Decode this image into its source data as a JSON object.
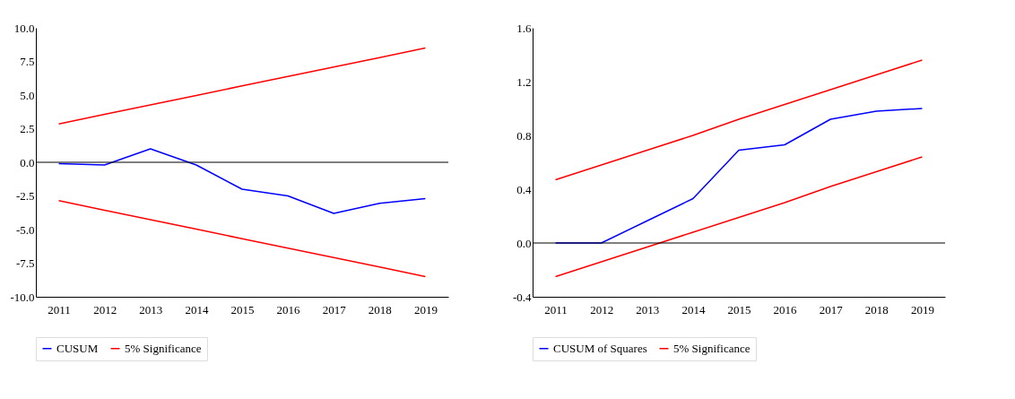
{
  "chart_data": [
    {
      "type": "line",
      "categories": [
        "2011",
        "2012",
        "2013",
        "2014",
        "2015",
        "2016",
        "2017",
        "2018",
        "2019"
      ],
      "series": [
        {
          "name": "CUSUM",
          "color": "#0000ff",
          "values": [
            -0.1,
            -0.2,
            1.0,
            -0.2,
            -2.0,
            -2.5,
            -3.8,
            -3.05,
            -2.7
          ]
        },
        {
          "name": "5% Significance",
          "color": "#ff0000",
          "values": [
            2.85,
            3.56,
            4.26,
            4.97,
            5.68,
            6.38,
            7.09,
            7.79,
            8.5
          ]
        },
        {
          "color": "#ff0000",
          "values": [
            -2.85,
            -3.56,
            -4.26,
            -4.97,
            -5.68,
            -6.38,
            -7.09,
            -7.79,
            -8.5
          ]
        }
      ],
      "ylim": [
        -10,
        10
      ],
      "yticks": [
        {
          "value": -10,
          "label": "-10.0"
        },
        {
          "value": -7.5,
          "label": "-7.5"
        },
        {
          "value": -5,
          "label": "-5.0"
        },
        {
          "value": -2.5,
          "label": "-2.5"
        },
        {
          "value": 0,
          "label": "0.0"
        },
        {
          "value": 2.5,
          "label": "2.5"
        },
        {
          "value": 5,
          "label": "5.0"
        },
        {
          "value": 7.5,
          "label": "7.5"
        },
        {
          "value": 10,
          "label": "10.0"
        }
      ],
      "ref_lines": [
        {
          "axis": "y",
          "value": 0,
          "color": "#000000"
        }
      ],
      "grid": false,
      "legend": "bottom",
      "marker": "none",
      "line_style": "solid"
    },
    {
      "type": "line",
      "categories": [
        "2011",
        "2012",
        "2013",
        "2014",
        "2015",
        "2016",
        "2017",
        "2018",
        "2019"
      ],
      "series": [
        {
          "name": "CUSUM of Squares",
          "color": "#0000ff",
          "values": [
            0.0,
            0.0,
            0.165,
            0.33,
            0.69,
            0.73,
            0.92,
            0.98,
            1.0
          ]
        },
        {
          "name": "5% Significance",
          "color": "#ff0000",
          "values": [
            0.47,
            0.58,
            0.69,
            0.8,
            0.92,
            1.03,
            1.14,
            1.25,
            1.36
          ]
        },
        {
          "color": "#ff0000",
          "values": [
            -0.25,
            -0.14,
            -0.03,
            0.08,
            0.19,
            0.3,
            0.42,
            0.53,
            0.64
          ]
        }
      ],
      "ylim": [
        -0.4,
        1.6
      ],
      "yticks": [
        {
          "value": -0.4,
          "label": "-0.4"
        },
        {
          "value": 0,
          "label": "0.0"
        },
        {
          "value": 0.4,
          "label": "0.4"
        },
        {
          "value": 0.8,
          "label": "0.8"
        },
        {
          "value": 1.2,
          "label": "1.2"
        },
        {
          "value": 1.6,
          "label": "1.6"
        }
      ],
      "ref_lines": [
        {
          "axis": "y",
          "value": 0,
          "color": "#000000"
        }
      ],
      "grid": false,
      "legend": "bottom",
      "marker": "none",
      "line_style": "solid"
    }
  ]
}
